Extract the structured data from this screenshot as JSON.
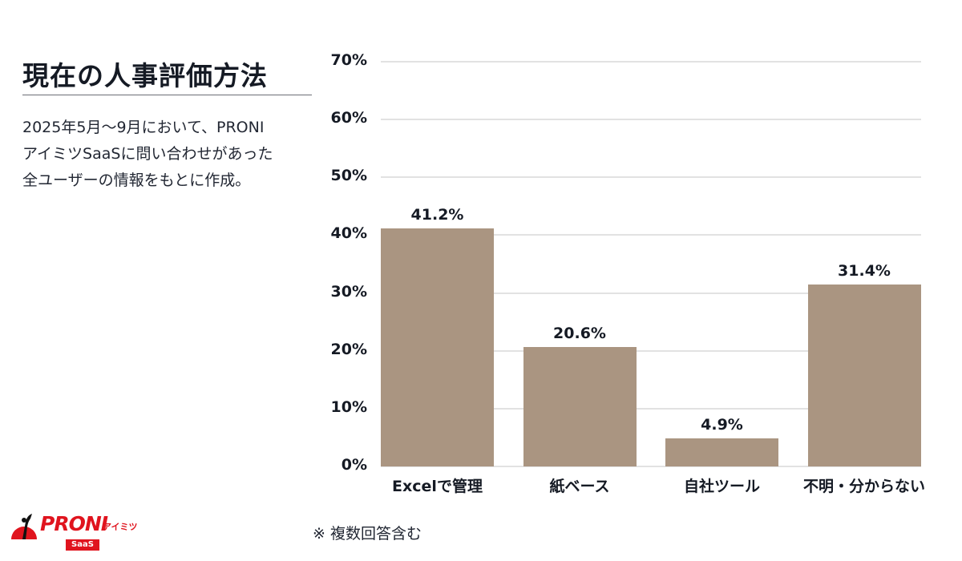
{
  "header": {
    "title": "現在の人事評価方法",
    "description_lines": [
      "2025年5月〜9月において、PRONI",
      "アイミツSaaSに問い合わせがあった",
      "全ユーザーの情報をもとに作成。"
    ]
  },
  "footer": {
    "note": "※ 複数回答含む",
    "logo": {
      "brand": "PRONI",
      "kana": "アイミツ",
      "badge": "SaaS",
      "icon": "logo-mark-icon"
    }
  },
  "colors": {
    "bar": "#aa9581",
    "gridline": "#e2e2e2",
    "text": "#151a24",
    "brand_red": "#e0141e"
  },
  "chart_data": {
    "type": "bar",
    "title": "現在の人事評価方法",
    "xlabel": "",
    "ylabel": "",
    "categories": [
      "Excelで管理",
      "紙ベース",
      "自社ツール",
      "不明・分からない"
    ],
    "values": [
      41.2,
      20.6,
      4.9,
      31.4
    ],
    "value_labels": [
      "41.2%",
      "20.6%",
      "4.9%",
      "31.4%"
    ],
    "ylim": [
      0,
      70
    ],
    "yticks": [
      "0%",
      "10%",
      "20%",
      "30%",
      "40%",
      "50%",
      "60%",
      "70%"
    ],
    "grid": true,
    "legend": null,
    "annotation": "※ 複数回答含む"
  }
}
